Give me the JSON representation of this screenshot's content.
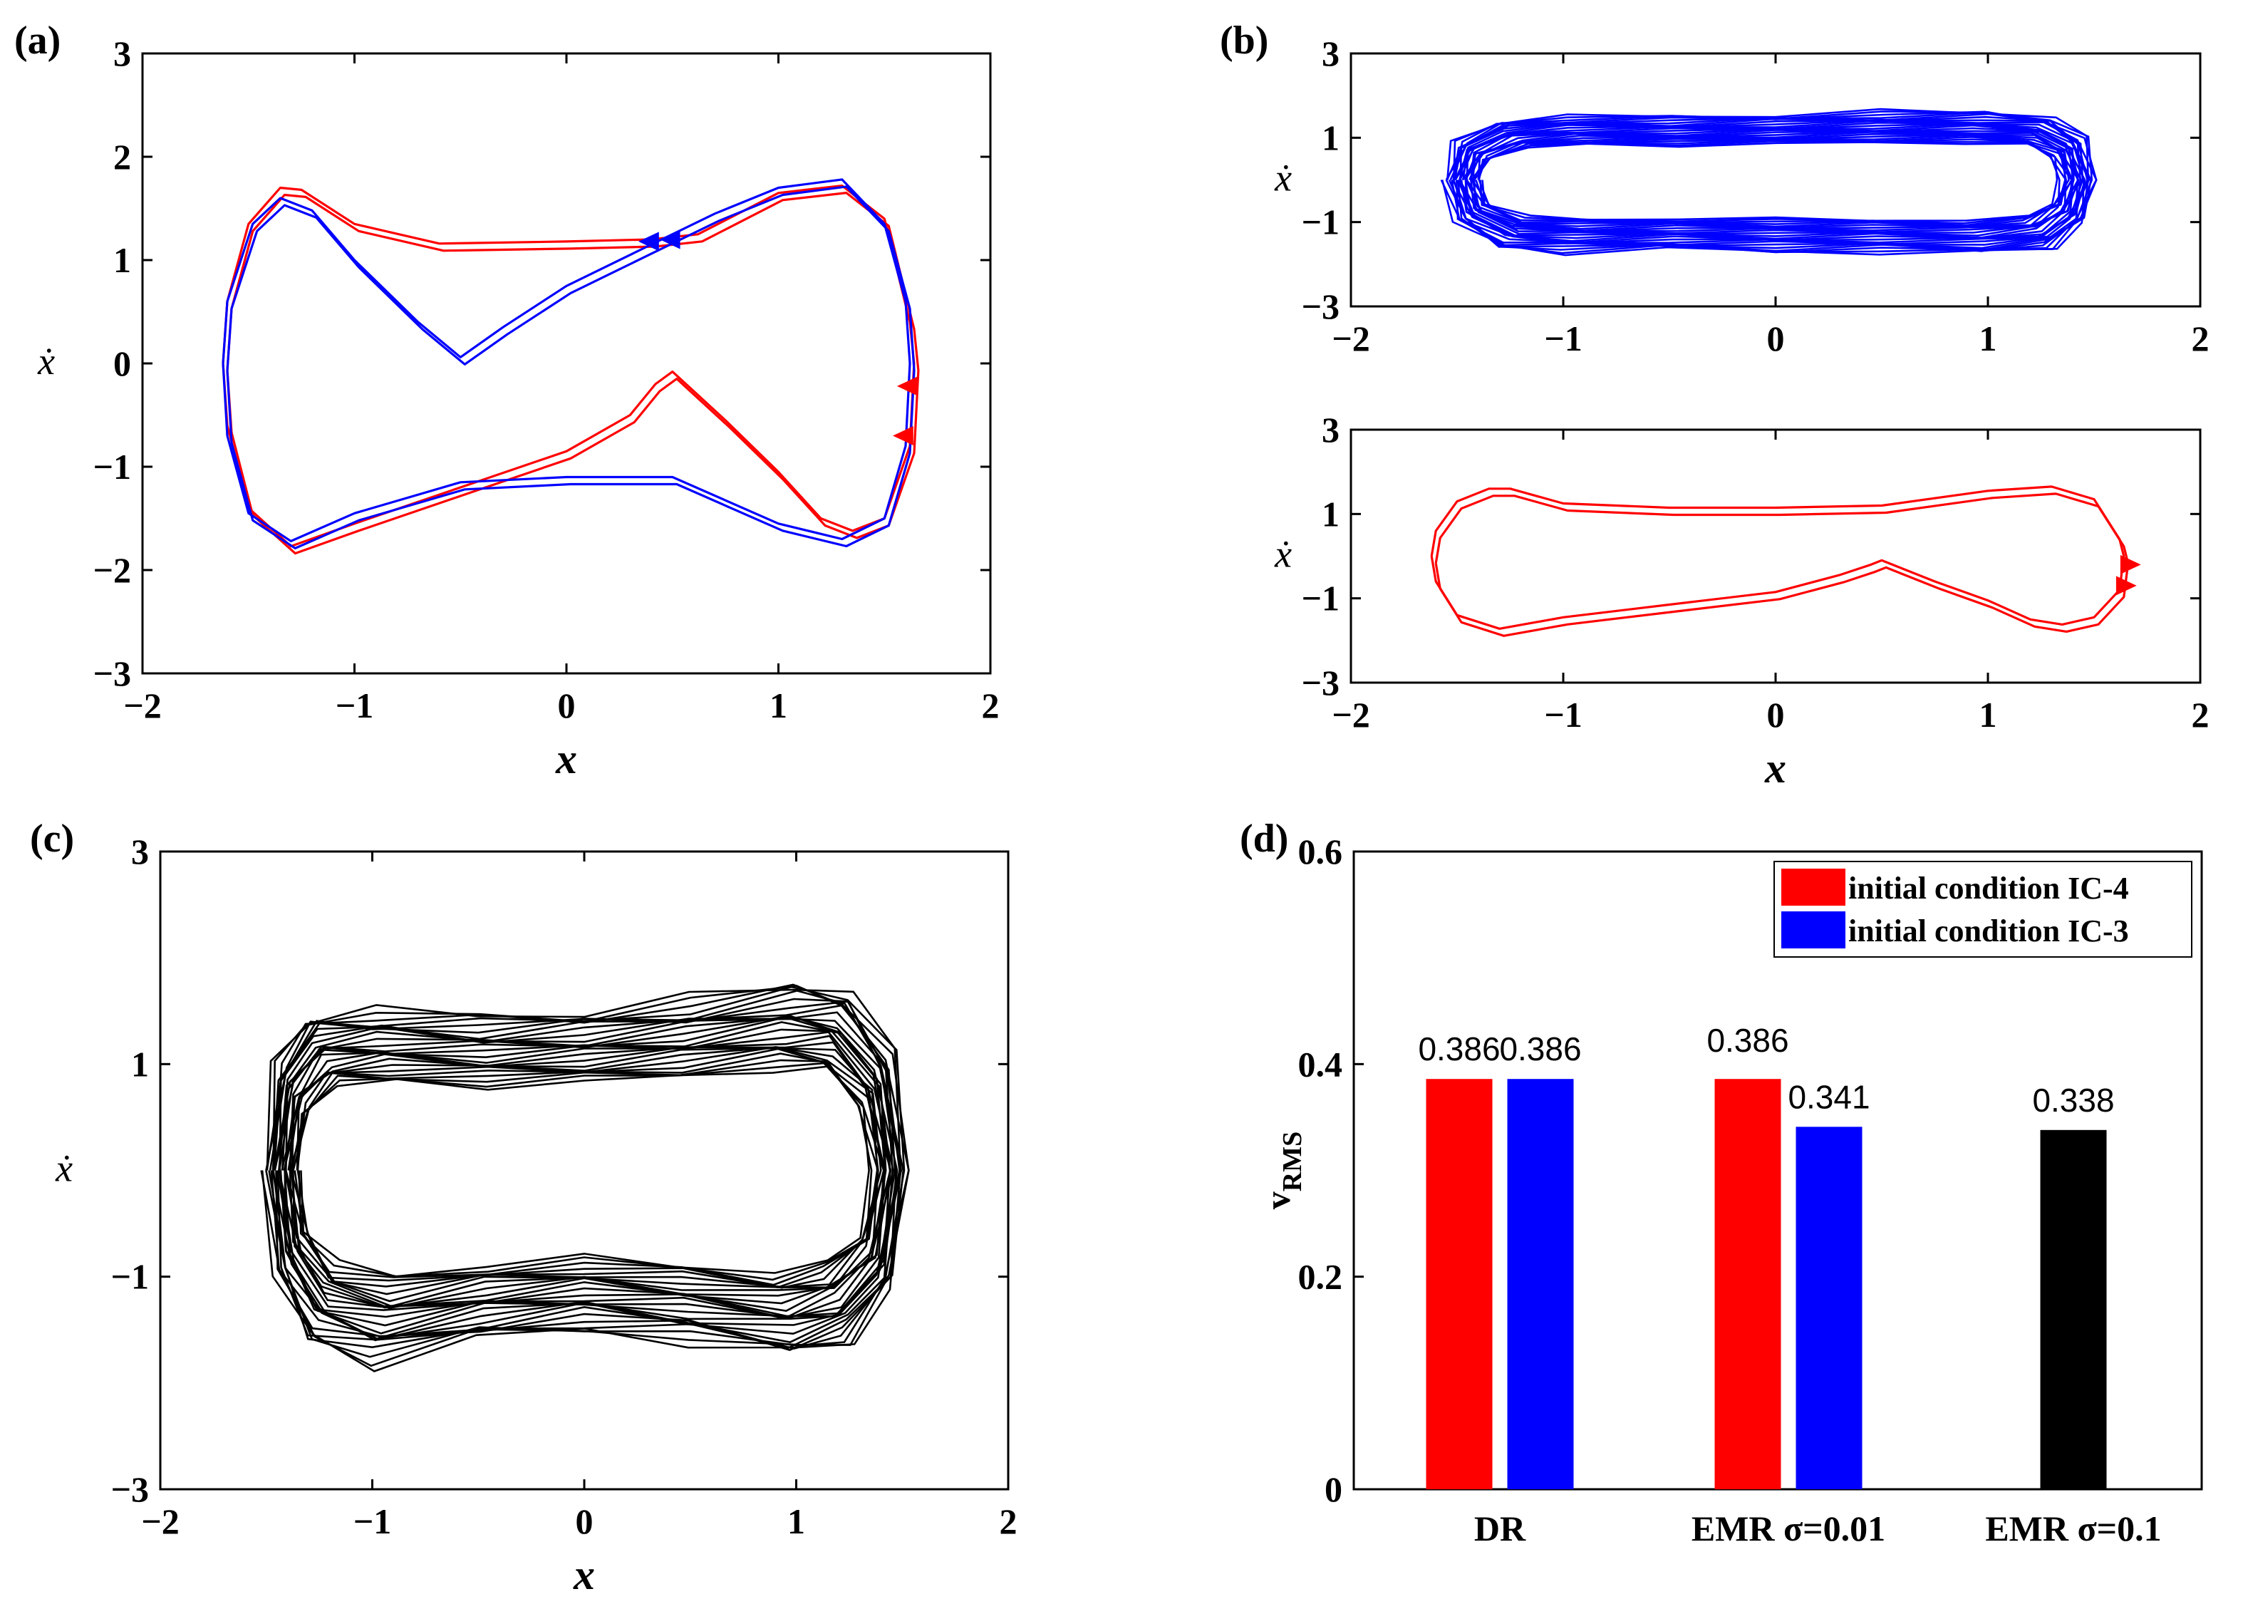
{
  "colors": {
    "red": "#ff0000",
    "blue": "#0000ff",
    "black": "#000000"
  },
  "chart_data": [
    {
      "id": "a",
      "panel_label": "(a)",
      "type": "line",
      "xlabel": "x",
      "ylabel": "ẋ",
      "xlim": [
        -2,
        2
      ],
      "ylim": [
        -3,
        3
      ],
      "xticks": [
        "−2",
        "−1",
        "0",
        "1",
        "2"
      ],
      "yticks": [
        "−3",
        "−2",
        "−1",
        "0",
        "1",
        "2",
        "3"
      ],
      "series": [
        {
          "name": "red orbit",
          "color": "#ff0000",
          "x": [
            -1.62,
            -1.6,
            -1.5,
            -1.35,
            -1.25,
            -1.0,
            -0.6,
            0.0,
            0.4,
            0.62,
            1.0,
            1.3,
            1.5,
            1.62,
            1.64,
            1.62,
            1.5,
            1.35,
            1.2,
            1.0,
            0.75,
            0.5,
            0.42,
            0.3,
            0.0,
            -0.5,
            -1.0,
            -1.3,
            -1.5,
            -1.6,
            -1.62
          ],
          "y": [
            0.0,
            0.6,
            1.35,
            1.7,
            1.68,
            1.35,
            1.16,
            1.18,
            1.2,
            1.25,
            1.65,
            1.72,
            1.4,
            0.4,
            0.0,
            -0.8,
            -1.5,
            -1.62,
            -1.5,
            -1.05,
            -0.55,
            -0.08,
            -0.2,
            -0.5,
            -0.85,
            -1.2,
            -1.55,
            -1.77,
            -1.4,
            -0.6,
            0.0
          ]
        },
        {
          "name": "blue orbit",
          "color": "#0000ff",
          "x": [
            -1.62,
            -1.6,
            -1.48,
            -1.35,
            -1.2,
            -1.0,
            -0.7,
            -0.5,
            -0.3,
            0.0,
            0.4,
            0.7,
            1.0,
            1.3,
            1.5,
            1.6,
            1.62,
            1.6,
            1.5,
            1.3,
            1.0,
            0.5,
            0.0,
            -0.5,
            -1.0,
            -1.3,
            -1.5,
            -1.6,
            -1.62
          ],
          "y": [
            0.0,
            0.6,
            1.35,
            1.6,
            1.48,
            1.0,
            0.4,
            0.06,
            0.35,
            0.75,
            1.15,
            1.45,
            1.7,
            1.78,
            1.35,
            0.6,
            0.0,
            -0.8,
            -1.5,
            -1.7,
            -1.55,
            -1.1,
            -1.1,
            -1.15,
            -1.45,
            -1.72,
            -1.45,
            -0.7,
            0.0
          ]
        }
      ],
      "arrows": [
        {
          "x": 0.4,
          "y": 1.18,
          "color": "#0000ff",
          "dir": "left"
        },
        {
          "x": 0.5,
          "y": 1.2,
          "color": "#0000ff",
          "dir": "left"
        },
        {
          "x": 1.62,
          "y": -0.22,
          "color": "#ff0000",
          "dir": "left"
        },
        {
          "x": 1.6,
          "y": -0.7,
          "color": "#ff0000",
          "dir": "left"
        }
      ]
    },
    {
      "id": "b1",
      "panel_label": "(b)",
      "type": "line",
      "xlabel": "",
      "ylabel": "ẋ",
      "xlim": [
        -2,
        2
      ],
      "ylim": [
        -3,
        3
      ],
      "xticks": [
        "−2",
        "−1",
        "0",
        "1",
        "2"
      ],
      "yticks": [
        "−3",
        "−1",
        "1",
        "3"
      ],
      "series": [
        {
          "name": "blue chaotic",
          "color": "#0000ff",
          "style": "band",
          "x": [
            -1.55,
            -1.5,
            -1.3,
            -1.0,
            -0.5,
            0.0,
            0.5,
            1.0,
            1.3,
            1.45,
            1.5,
            1.45,
            1.3,
            1.0,
            0.5,
            0.0,
            -0.5,
            -1.0,
            -1.3,
            -1.5,
            -1.55
          ],
          "y": [
            0.0,
            0.9,
            1.4,
            1.5,
            1.5,
            1.55,
            1.6,
            1.62,
            1.5,
            1.0,
            0.0,
            -1.0,
            -1.6,
            -1.75,
            -1.7,
            -1.7,
            -1.65,
            -1.7,
            -1.6,
            -1.0,
            0.0
          ]
        }
      ]
    },
    {
      "id": "b2",
      "panel_label": "",
      "type": "line",
      "xlabel": "x",
      "ylabel": "ẋ",
      "xlim": [
        -2,
        2
      ],
      "ylim": [
        -3,
        3
      ],
      "xticks": [
        "−2",
        "−1",
        "0",
        "1",
        "2"
      ],
      "yticks": [
        "−3",
        "−1",
        "1",
        "3"
      ],
      "series": [
        {
          "name": "red orbit",
          "color": "#ff0000",
          "x": [
            -1.62,
            -1.6,
            -1.5,
            -1.35,
            -1.25,
            -1.0,
            -0.5,
            0.0,
            0.5,
            1.0,
            1.3,
            1.5,
            1.62,
            1.64,
            1.62,
            1.5,
            1.35,
            1.2,
            1.0,
            0.75,
            0.5,
            0.45,
            0.3,
            0.0,
            -0.5,
            -1.0,
            -1.3,
            -1.5,
            -1.6,
            -1.62
          ],
          "y": [
            0.0,
            0.6,
            1.3,
            1.6,
            1.6,
            1.25,
            1.15,
            1.15,
            1.2,
            1.55,
            1.65,
            1.35,
            0.4,
            0.0,
            -0.8,
            -1.45,
            -1.62,
            -1.5,
            -1.05,
            -0.6,
            -0.1,
            -0.2,
            -0.45,
            -0.85,
            -1.15,
            -1.45,
            -1.72,
            -1.4,
            -0.6,
            0.0
          ]
        }
      ],
      "arrows": [
        {
          "x": 1.66,
          "y": -0.2,
          "color": "#ff0000",
          "dir": "right"
        },
        {
          "x": 1.64,
          "y": -0.7,
          "color": "#ff0000",
          "dir": "right"
        }
      ]
    },
    {
      "id": "c",
      "panel_label": "(c)",
      "type": "line",
      "xlabel": "x",
      "ylabel": "ẋ",
      "xlim": [
        -2,
        2
      ],
      "ylim": [
        -3,
        3
      ],
      "xticks": [
        "−2",
        "−1",
        "0",
        "1",
        "2"
      ],
      "yticks": [
        "−3",
        "−1",
        "1",
        "3"
      ],
      "series": [
        {
          "name": "black chaotic",
          "color": "#000000",
          "style": "band",
          "x": [
            -1.5,
            -1.45,
            -1.3,
            -1.0,
            -0.5,
            0.0,
            0.5,
            1.0,
            1.25,
            1.45,
            1.52,
            1.45,
            1.25,
            1.0,
            0.5,
            0.0,
            -0.5,
            -1.0,
            -1.3,
            -1.45,
            -1.5
          ],
          "y": [
            0.0,
            1.0,
            1.45,
            1.5,
            1.45,
            1.5,
            1.6,
            1.75,
            1.7,
            1.1,
            0.0,
            -1.1,
            -1.6,
            -1.75,
            -1.6,
            -1.5,
            -1.6,
            -1.8,
            -1.6,
            -1.0,
            0.0
          ]
        }
      ]
    },
    {
      "id": "d",
      "panel_label": "(d)",
      "type": "bar",
      "xlabel": "",
      "ylabel": "v",
      "ylabel_sub": "RMS",
      "ylim": [
        0,
        0.6
      ],
      "yticks": [
        "0",
        "0.2",
        "0.4",
        "0.6"
      ],
      "categories": [
        "DR",
        "EMR σ=0.01",
        "EMR σ=0.1"
      ],
      "legend": [
        "initial condition IC-4",
        "initial condition IC-3"
      ],
      "legend_position": "top-right",
      "bars": [
        {
          "category": 0,
          "value": 0.386,
          "label": "0.386",
          "color": "#ff0000",
          "slot": -1
        },
        {
          "category": 0,
          "value": 0.386,
          "label": "0.386",
          "color": "#0000ff",
          "slot": 1
        },
        {
          "category": 1,
          "value": 0.386,
          "label": "0.386",
          "color": "#ff0000",
          "slot": -1
        },
        {
          "category": 1,
          "value": 0.341,
          "label": "0.341",
          "color": "#0000ff",
          "slot": 1
        },
        {
          "category": 2,
          "value": 0.338,
          "label": "0.338",
          "color": "#000000",
          "slot": 0
        }
      ]
    }
  ]
}
